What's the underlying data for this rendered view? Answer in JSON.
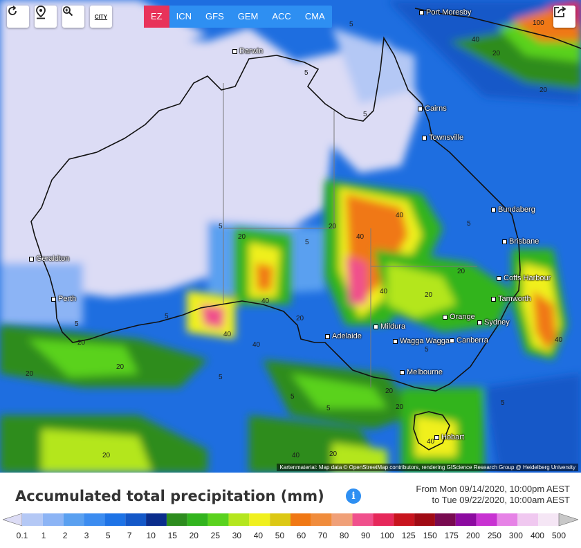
{
  "toolbar": {
    "buttons": [
      {
        "name": "refresh-icon",
        "label": "refresh"
      },
      {
        "name": "location-pin-icon",
        "label": "location"
      },
      {
        "name": "zoom-in-icon",
        "label": "zoom"
      },
      {
        "name": "city-toggle-icon",
        "label": "CITY"
      }
    ],
    "models": [
      "EZ",
      "ICN",
      "GFS",
      "GEM",
      "ACC",
      "CMA"
    ],
    "active_model": "EZ",
    "share_icon": "share-icon"
  },
  "cities": [
    {
      "name": "Port Moresby"
    },
    {
      "name": "Darwin"
    },
    {
      "name": "Cairns"
    },
    {
      "name": "Townsville"
    },
    {
      "name": "Bundaberg"
    },
    {
      "name": "Brisbane"
    },
    {
      "name": "Geraldton"
    },
    {
      "name": "Perth"
    },
    {
      "name": "Coffs Harbour"
    },
    {
      "name": "Tamworth"
    },
    {
      "name": "Orange"
    },
    {
      "name": "Sydney"
    },
    {
      "name": "Mildura"
    },
    {
      "name": "Adelaide"
    },
    {
      "name": "Wagga Wagga"
    },
    {
      "name": "Canberra"
    },
    {
      "name": "Melbourne"
    },
    {
      "name": "Hobart"
    }
  ],
  "contour_labels": [
    "5",
    "5",
    "5",
    "5",
    "5",
    "5",
    "5",
    "5",
    "5",
    "5",
    "5",
    "20",
    "20",
    "20",
    "20",
    "20",
    "20",
    "40",
    "40",
    "40",
    "40",
    "40",
    "40",
    "40",
    "100",
    "20",
    "20",
    "20",
    "20",
    "40",
    "40",
    "40",
    "20",
    "20",
    "5",
    "5",
    "20",
    "20"
  ],
  "credit": "Kartenmaterial: Map data © OpenStreetMap contributors, rendering GIScience Research Group @ Heidelberg University",
  "legend": {
    "title": "Accumulated total precipitation (mm)",
    "period_from": "From Mon 09/14/2020, 10:00pm AEST",
    "period_to": "to Tue 09/22/2020, 10:00am AEST",
    "ticks": [
      "0.1",
      "1",
      "2",
      "3",
      "5",
      "7",
      "10",
      "15",
      "20",
      "25",
      "30",
      "40",
      "50",
      "60",
      "70",
      "80",
      "90",
      "100",
      "125",
      "150",
      "175",
      "200",
      "250",
      "300",
      "400",
      "500"
    ],
    "colors": [
      "#dcdcf5",
      "#b4c8f5",
      "#8cb4f5",
      "#5aa0f0",
      "#3c8cf0",
      "#1e73e6",
      "#1458c8",
      "#0a2d8c",
      "#2d8c1e",
      "#32b41e",
      "#5ad21e",
      "#b4e61e",
      "#f0f01e",
      "#dcc814",
      "#f07814",
      "#f08c3c",
      "#f0a078",
      "#f0508c",
      "#e6285a",
      "#c8141e",
      "#a00a14",
      "#780a50",
      "#8c0aa0",
      "#c832d2",
      "#e682e6",
      "#f0c8f0",
      "#f5e6f5",
      "#c8c8c8"
    ]
  }
}
